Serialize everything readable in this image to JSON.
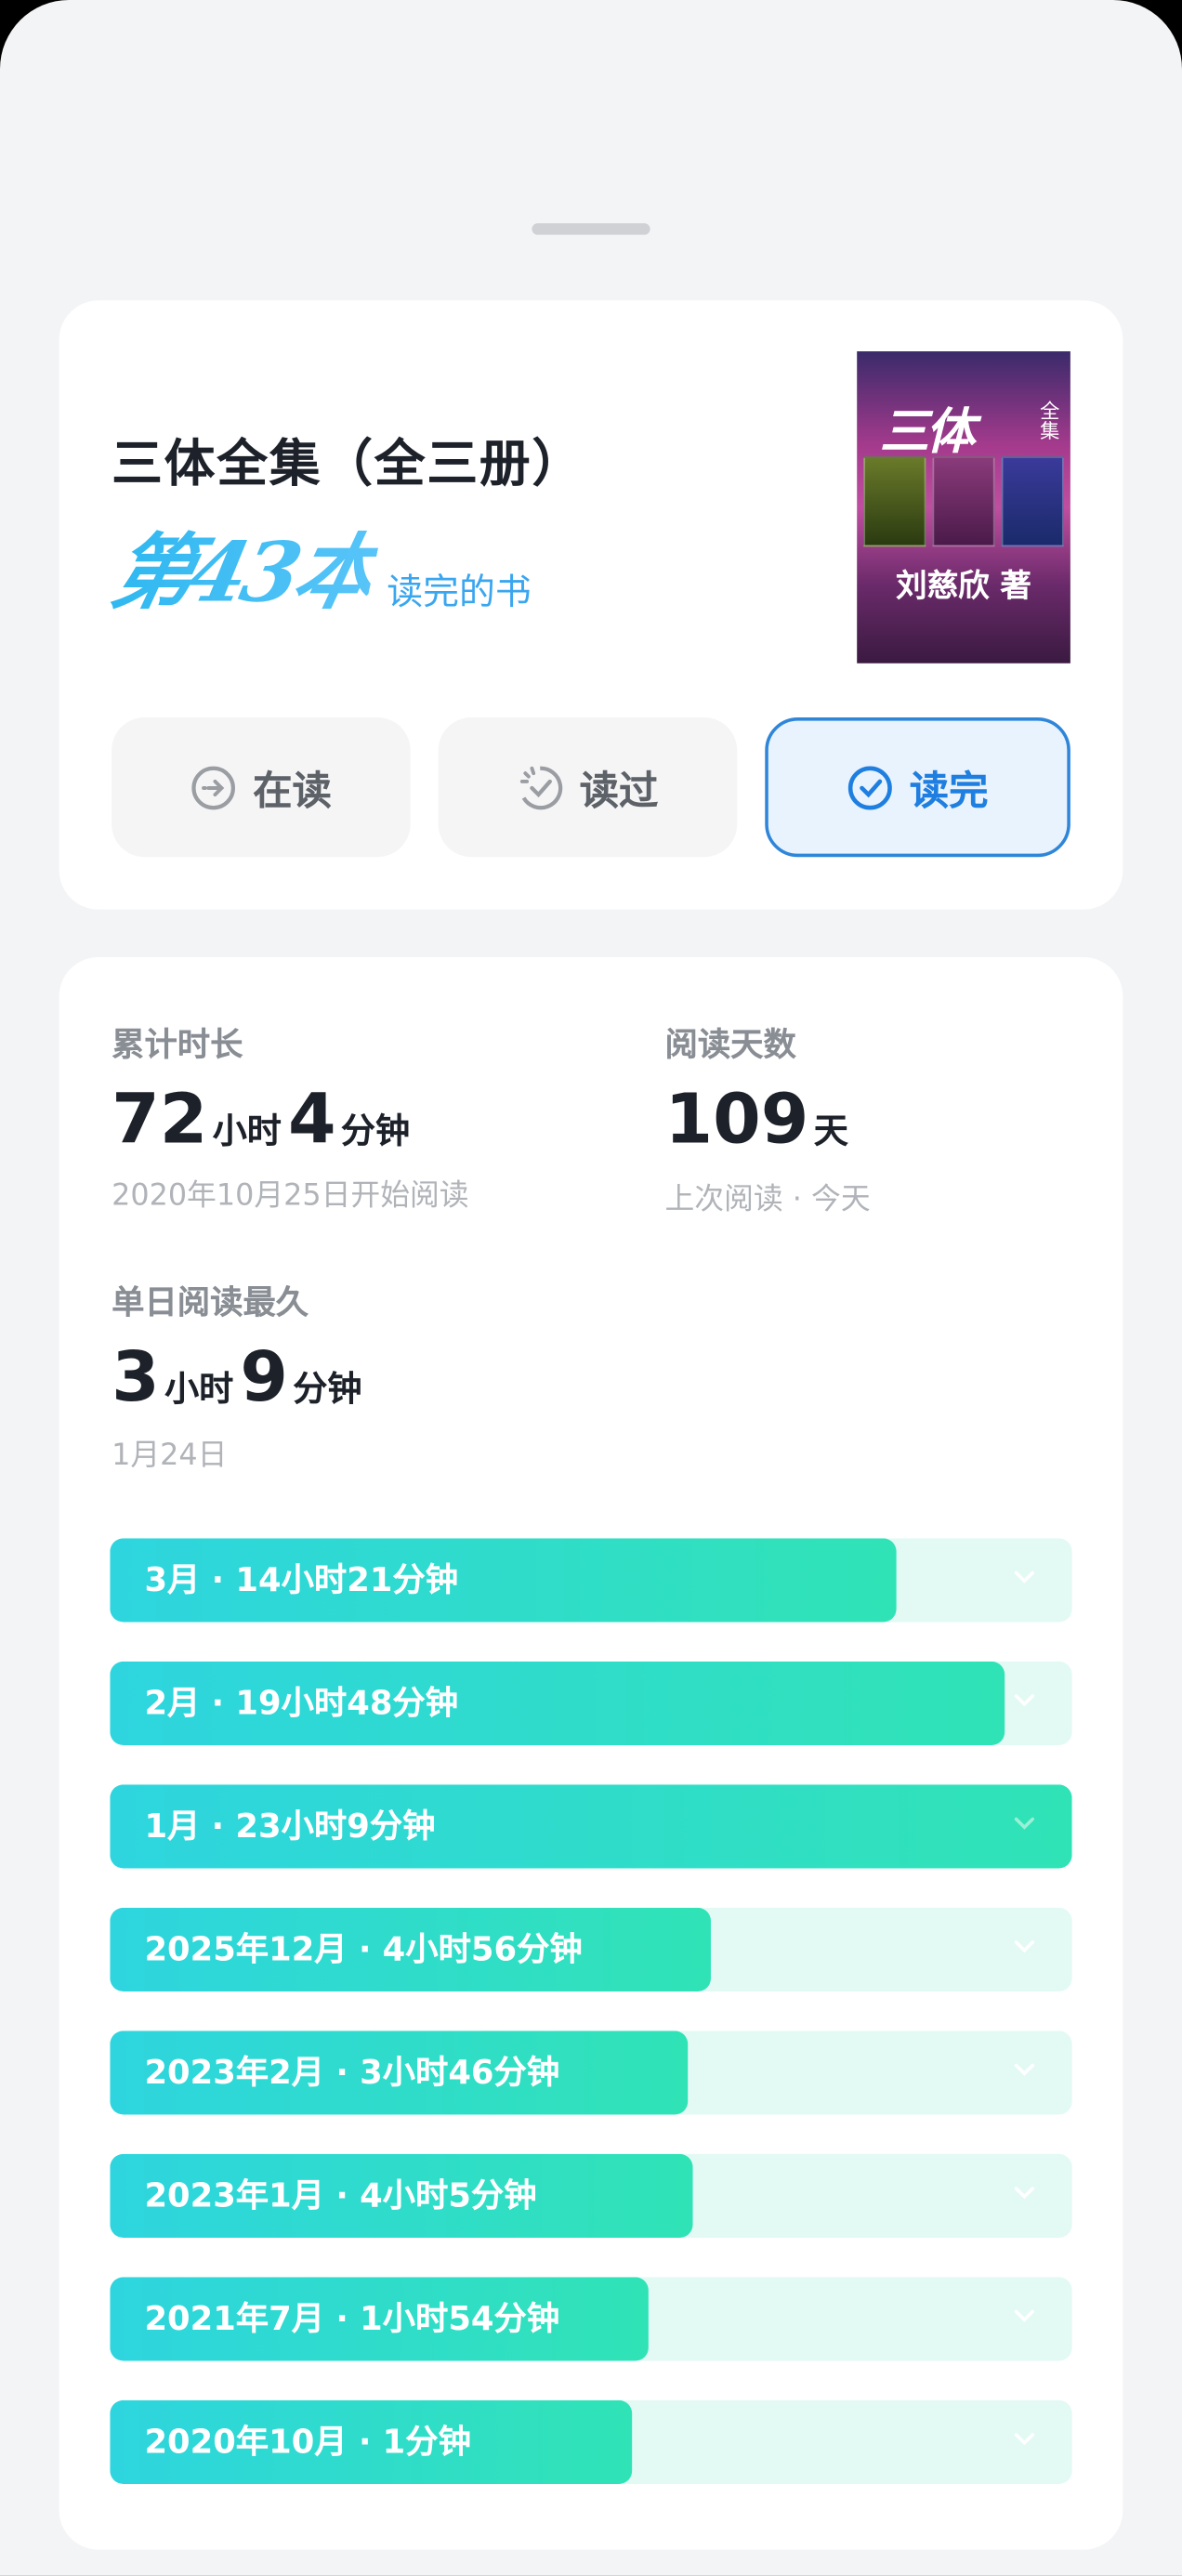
{
  "book": {
    "title": "三体全集（全三册）",
    "rank_number": "第43本",
    "rank_label": "读完的书",
    "cover": {
      "title": "三体",
      "series": "全集",
      "author": "刘慈欣 著"
    }
  },
  "status_buttons": [
    {
      "label": "在读",
      "icon": "arrow-right-circle-icon",
      "active": false
    },
    {
      "label": "读过",
      "icon": "dashed-check-circle-icon",
      "active": false
    },
    {
      "label": "读完",
      "icon": "check-circle-icon",
      "active": true
    }
  ],
  "stats": {
    "total": {
      "label": "累计时长",
      "hours": "72",
      "hours_unit": "小时",
      "minutes": "4",
      "minutes_unit": "分钟",
      "sub": "2020年10月25日开始阅读"
    },
    "days": {
      "label": "阅读天数",
      "value": "109",
      "unit": "天",
      "sub": "上次阅读 · 今天"
    },
    "longest": {
      "label": "单日阅读最久",
      "hours": "3",
      "hours_unit": "小时",
      "minutes": "9",
      "minutes_unit": "分钟",
      "sub": "1月24日"
    }
  },
  "monthly": [
    {
      "label": "3月 · 14小时21分钟",
      "fill": 0.817
    },
    {
      "label": "2月 · 19小时48分钟",
      "fill": 0.93
    },
    {
      "label": "1月 · 23小时9分钟",
      "fill": 1.0
    },
    {
      "label": "2025年12月 · 4小时56分钟",
      "fill": 0.624
    },
    {
      "label": "2023年2月 · 3小时46分钟",
      "fill": 0.6
    },
    {
      "label": "2023年1月 · 4小时5分钟",
      "fill": 0.605
    },
    {
      "label": "2021年7月 · 1小时54分钟",
      "fill": 0.56
    },
    {
      "label": "2020年10月 · 1分钟",
      "fill": 0.542
    }
  ],
  "colors": {
    "accent": "#2f86d9",
    "bar_start": "#2ed5df",
    "bar_end": "#30e3b6",
    "track": "#e3faf4"
  }
}
